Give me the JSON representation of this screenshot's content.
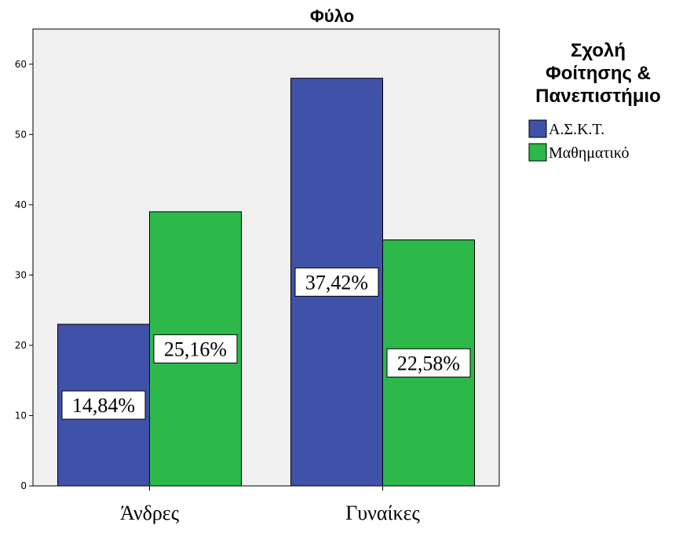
{
  "chart_data": {
    "type": "bar",
    "title": "Φύλο",
    "categories": [
      "Άνδρες",
      "Γυναίκες"
    ],
    "series": [
      {
        "name": "Α.Σ.Κ.Τ.",
        "values": [
          23,
          58
        ],
        "labels": [
          "14,84%",
          "37,42%"
        ],
        "color": "#3f51a8"
      },
      {
        "name": "Μαθηματικό",
        "values": [
          39,
          35
        ],
        "labels": [
          "25,16%",
          "22,58%"
        ],
        "color": "#2db84a"
      }
    ],
    "ylim": [
      0,
      65
    ],
    "yticks": [
      0,
      10,
      20,
      30,
      40,
      50,
      60
    ],
    "grid": false,
    "plot_background": "#f0f0f0",
    "legend": {
      "title_lines": [
        "Σχολή",
        "Φοίτησης &",
        "Πανεπιστήμιο"
      ],
      "placement": "right"
    }
  }
}
